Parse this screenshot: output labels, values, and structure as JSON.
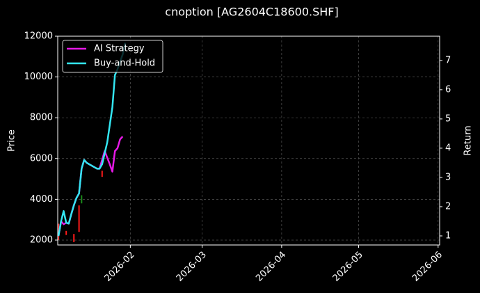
{
  "chart_data": {
    "type": "line",
    "title": "cnoption [AG2604C18600.SHF]",
    "ylabel": "Price",
    "y2label": "Return",
    "xlim": [
      3.7,
      152.6
    ],
    "xticks": [
      {
        "value": 32,
        "label": "2026-02"
      },
      {
        "value": 60,
        "label": "2026-03"
      },
      {
        "value": 91,
        "label": "2026-04"
      },
      {
        "value": 121,
        "label": "2026-05"
      },
      {
        "value": 152,
        "label": "2026-06"
      }
    ],
    "ylim": [
      1760,
      12000
    ],
    "yticks": [
      2000,
      4000,
      6000,
      8000,
      10000,
      12000
    ],
    "y2lim": [
      0.69,
      7.83
    ],
    "y2ticks": [
      1,
      2,
      3,
      4,
      5,
      6,
      7
    ],
    "grid": true,
    "legend": "upper left",
    "candles": {
      "up_color": "#1a8a1a",
      "down_color": "#ff1a1a",
      "x": [
        4,
        7,
        10,
        12,
        13,
        21
      ],
      "open": [
        2800,
        2450,
        2300,
        3700,
        3800,
        5400
      ],
      "close": [
        2000,
        2250,
        1900,
        2400,
        4200,
        5100
      ]
    },
    "series": [
      {
        "name": "AI Strategy",
        "color": "#e619e6",
        "axis": "y2",
        "x": [
          4,
          5,
          6,
          7,
          8,
          9,
          10,
          11,
          12,
          13,
          14,
          15,
          16,
          19,
          20,
          21,
          22,
          24,
          25,
          26,
          27,
          28,
          29
        ],
        "values": [
          1.0,
          1.5,
          1.4,
          1.45,
          1.42,
          1.75,
          2.05,
          2.3,
          2.45,
          3.3,
          3.6,
          3.5,
          3.45,
          3.3,
          3.3,
          3.6,
          3.9,
          3.45,
          3.2,
          3.9,
          4.0,
          4.3,
          4.4
        ]
      },
      {
        "name": "Buy-and-Hold",
        "color": "#33e6f2",
        "axis": "y2",
        "x": [
          4,
          5,
          6,
          7,
          8,
          9,
          10,
          11,
          12,
          13,
          14,
          15,
          16,
          19,
          20,
          21,
          23,
          24,
          25,
          26,
          27,
          29,
          30
        ],
        "values": [
          1.0,
          1.5,
          1.85,
          1.45,
          1.42,
          1.75,
          2.05,
          2.3,
          2.45,
          3.3,
          3.6,
          3.5,
          3.45,
          3.3,
          3.3,
          3.45,
          4.2,
          4.8,
          5.4,
          6.5,
          6.7,
          7.2,
          7.6
        ]
      }
    ]
  }
}
